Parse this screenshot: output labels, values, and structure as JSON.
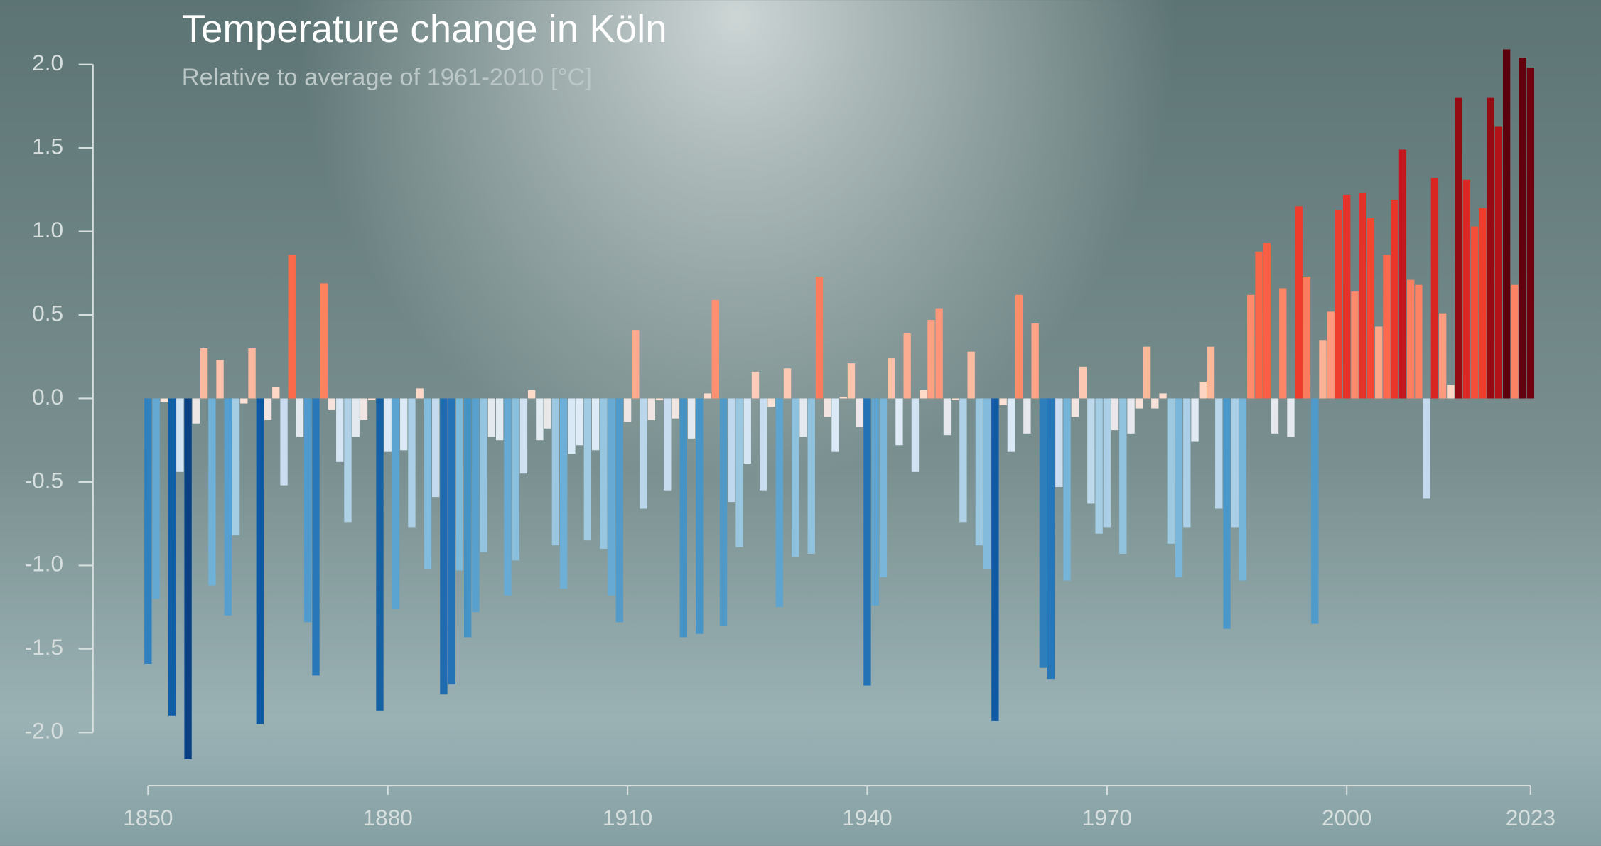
{
  "chart_data": {
    "type": "bar",
    "title": "Temperature change in Köln",
    "subtitle": "Relative to average of 1961-2010  [°C]",
    "x": [
      1850,
      1851,
      1852,
      1853,
      1854,
      1855,
      1856,
      1857,
      1858,
      1859,
      1860,
      1861,
      1862,
      1863,
      1864,
      1865,
      1866,
      1867,
      1868,
      1869,
      1870,
      1871,
      1872,
      1873,
      1874,
      1875,
      1876,
      1877,
      1878,
      1879,
      1880,
      1881,
      1882,
      1883,
      1884,
      1885,
      1886,
      1887,
      1888,
      1889,
      1890,
      1891,
      1892,
      1893,
      1894,
      1895,
      1896,
      1897,
      1898,
      1899,
      1900,
      1901,
      1902,
      1903,
      1904,
      1905,
      1906,
      1907,
      1908,
      1909,
      1910,
      1911,
      1912,
      1913,
      1914,
      1915,
      1916,
      1917,
      1918,
      1919,
      1920,
      1921,
      1922,
      1923,
      1924,
      1925,
      1926,
      1927,
      1928,
      1929,
      1930,
      1931,
      1932,
      1933,
      1934,
      1935,
      1936,
      1937,
      1938,
      1939,
      1940,
      1941,
      1942,
      1943,
      1944,
      1945,
      1946,
      1947,
      1948,
      1949,
      1950,
      1951,
      1952,
      1953,
      1954,
      1955,
      1956,
      1957,
      1958,
      1959,
      1960,
      1961,
      1962,
      1963,
      1964,
      1965,
      1966,
      1967,
      1968,
      1969,
      1970,
      1971,
      1972,
      1973,
      1974,
      1975,
      1976,
      1977,
      1978,
      1979,
      1980,
      1981,
      1982,
      1983,
      1984,
      1985,
      1986,
      1987,
      1988,
      1989,
      1990,
      1991,
      1992,
      1993,
      1994,
      1995,
      1996,
      1997,
      1998,
      1999,
      2000,
      2001,
      2002,
      2003,
      2004,
      2005,
      2006,
      2007,
      2008,
      2009,
      2010,
      2011,
      2012,
      2013,
      2014,
      2015,
      2016,
      2017,
      2018,
      2019,
      2020,
      2021,
      2022,
      2023
    ],
    "values": [
      -1.59,
      -1.2,
      -0.02,
      -1.9,
      -0.44,
      -2.16,
      -0.15,
      0.3,
      -1.12,
      0.23,
      -1.3,
      -0.82,
      -0.03,
      0.3,
      -1.95,
      -0.13,
      0.07,
      -0.52,
      0.86,
      -0.23,
      -1.34,
      -1.66,
      0.69,
      -0.07,
      -0.38,
      -0.74,
      -0.23,
      -0.13,
      -0.01,
      -1.87,
      -0.32,
      -1.26,
      -0.31,
      -0.77,
      0.06,
      -1.02,
      -0.59,
      -1.77,
      -1.71,
      -1.03,
      -1.43,
      -1.28,
      -0.92,
      -0.23,
      -0.25,
      -1.18,
      -0.97,
      -0.45,
      0.05,
      -0.25,
      -0.18,
      -0.88,
      -1.14,
      -0.33,
      -0.28,
      -0.85,
      -0.31,
      -0.9,
      -1.18,
      -1.34,
      -0.14,
      0.41,
      -0.66,
      -0.13,
      -0.01,
      -0.55,
      -0.12,
      -1.43,
      -0.24,
      -1.41,
      0.03,
      0.59,
      -1.36,
      -0.62,
      -0.89,
      -0.39,
      0.16,
      -0.55,
      -0.05,
      -1.25,
      0.18,
      -0.95,
      -0.23,
      -0.93,
      0.73,
      -0.11,
      -0.32,
      0.01,
      0.21,
      -0.17,
      -1.72,
      -1.24,
      -1.07,
      0.24,
      -0.28,
      0.39,
      -0.44,
      0.05,
      0.47,
      0.54,
      -0.22,
      -0.01,
      -0.74,
      0.28,
      -0.88,
      -1.02,
      -1.93,
      -0.04,
      -0.32,
      0.62,
      -0.21,
      0.45,
      -1.61,
      -1.68,
      -0.53,
      -1.09,
      -0.11,
      0.19,
      -0.63,
      -0.81,
      -0.77,
      -0.19,
      -0.93,
      -0.21,
      -0.06,
      0.31,
      -0.06,
      0.03,
      -0.87,
      -1.07,
      -0.77,
      -0.26,
      0.1,
      0.31,
      -0.66,
      -1.38,
      -0.77,
      -1.09,
      0.62,
      0.88,
      0.93,
      -0.21,
      0.66,
      -0.23,
      1.15,
      0.73,
      -1.35,
      0.35,
      0.52,
      1.13,
      1.22,
      0.64,
      1.23,
      1.08,
      0.43,
      0.86,
      1.19,
      1.49,
      0.71,
      0.68,
      -0.6,
      1.32,
      0.51,
      0.08,
      1.8,
      1.31,
      1.03,
      1.14,
      1.8,
      1.63,
      2.09,
      0.68,
      2.04,
      1.98
    ],
    "color_scale": [
      "#08306b",
      "#08519c",
      "#2171b5",
      "#4292c6",
      "#6baed6",
      "#9ecae1",
      "#c6dbef",
      "#deebf7",
      "#fee0d2",
      "#fcbba1",
      "#fc9272",
      "#fb6a4a",
      "#ef3b2c",
      "#cb181d",
      "#a50f15",
      "#67000d",
      "#3a0008"
    ],
    "xlim": [
      1850,
      2023
    ],
    "xticks": [
      1850,
      1880,
      1910,
      1940,
      1970,
      2000,
      2023
    ],
    "ylim": [
      -2.3,
      2.2
    ],
    "yticks": [
      {
        "value": -2,
        "label": "-2.0"
      },
      -1.5,
      {
        "value": -1,
        "label": "-1.0"
      },
      -0.5,
      {
        "value": 0,
        "label": "0.0"
      },
      0.5,
      {
        "value": 1,
        "label": "1.0"
      },
      1.5,
      {
        "value": 2,
        "label": "2.0"
      }
    ]
  }
}
